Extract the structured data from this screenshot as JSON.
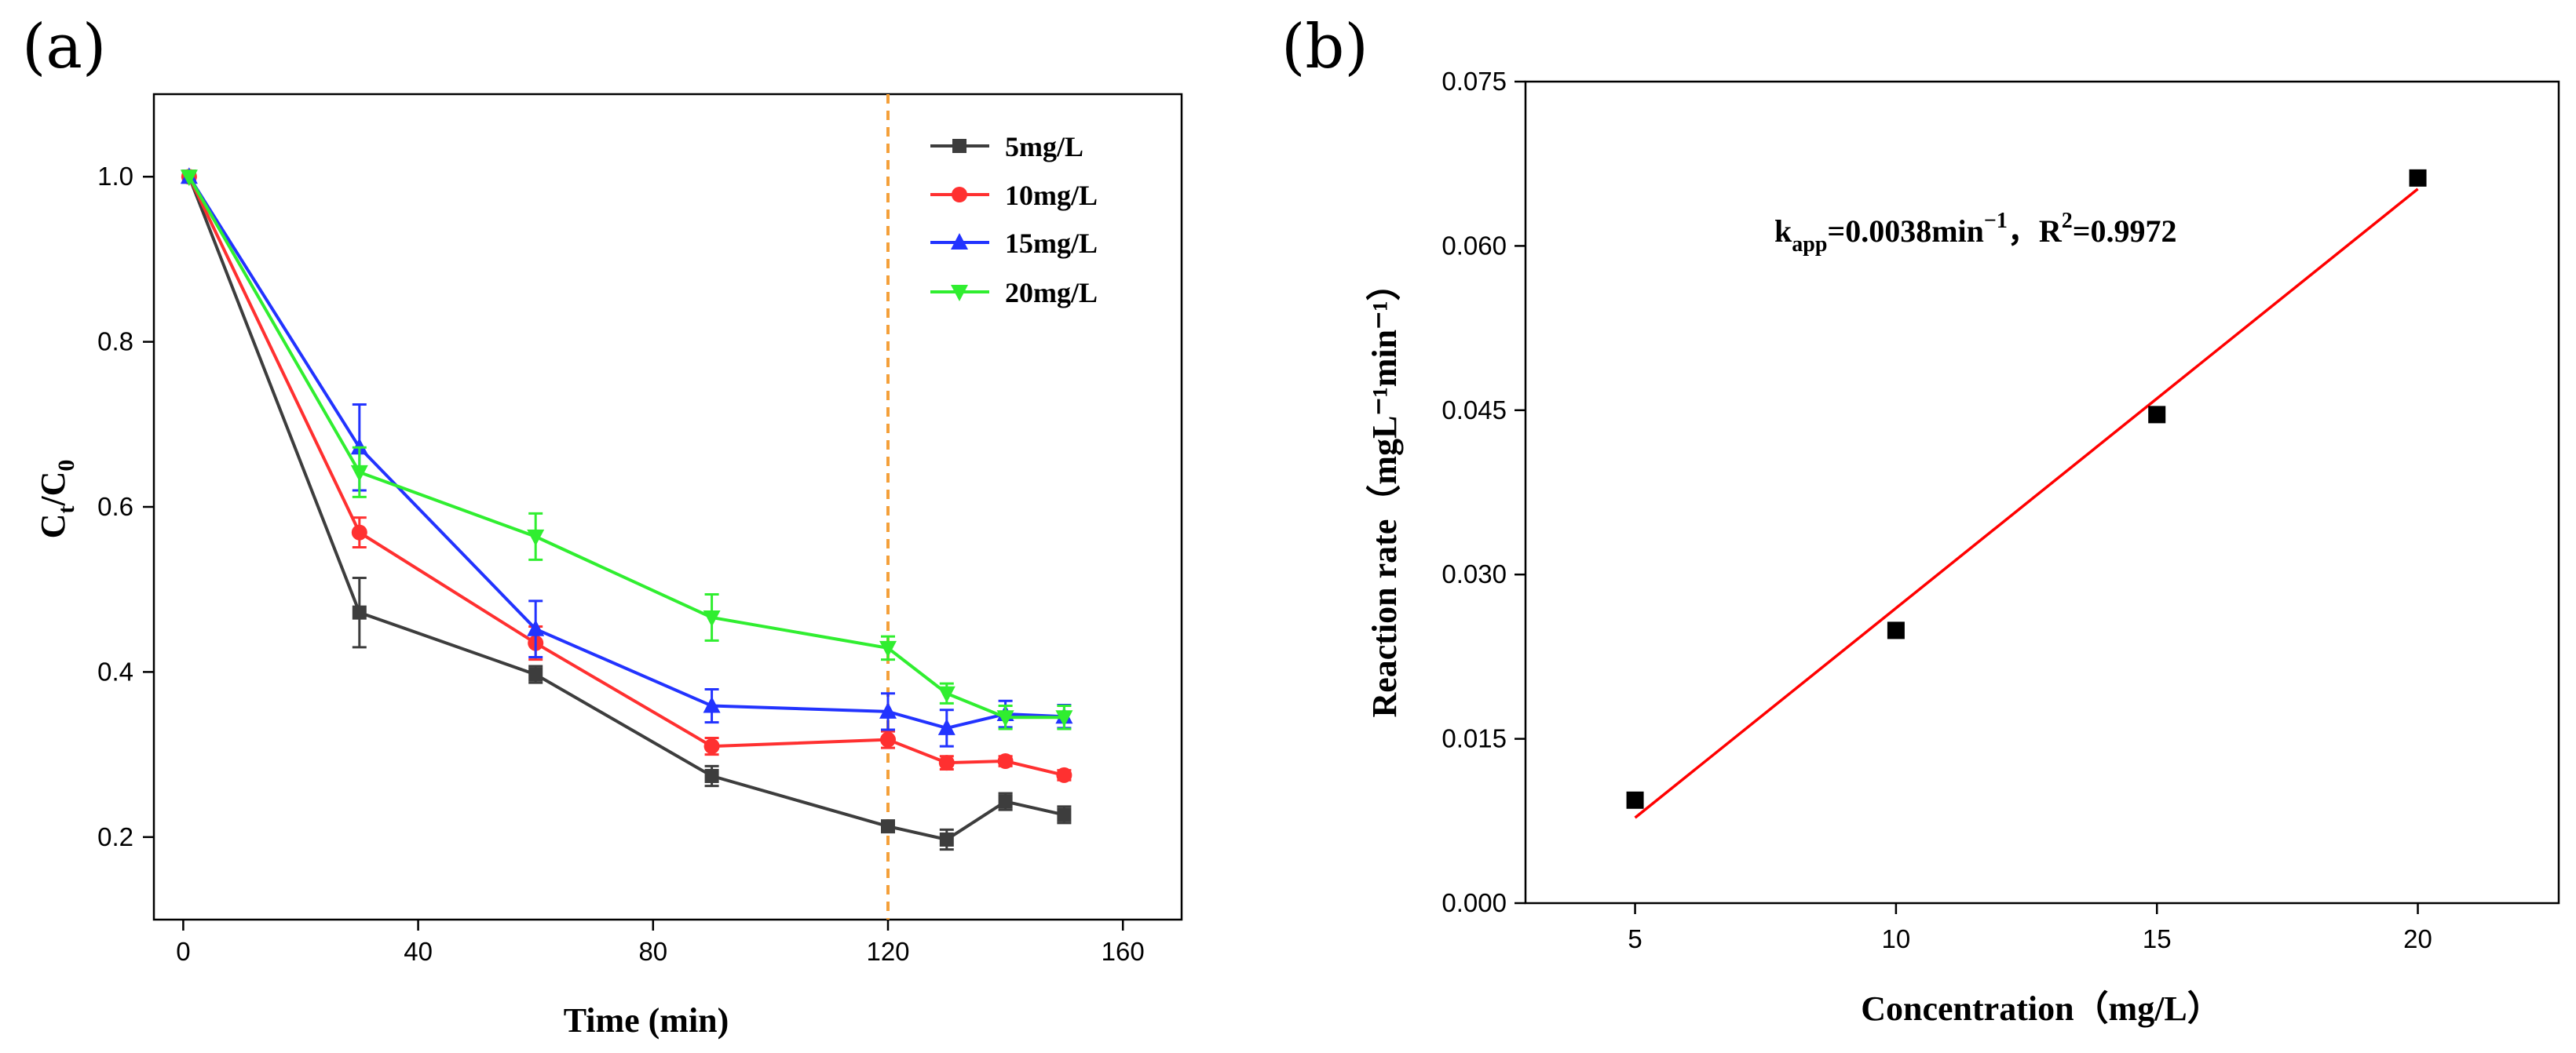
{
  "panels": {
    "a": {
      "label": "(a)"
    },
    "b": {
      "label": "(b)"
    }
  },
  "chart_data": [
    {
      "type": "line",
      "panel": "(a)",
      "xlabel": "Time (min)",
      "ylabel": {
        "base": "C",
        "sub_t": "t",
        "slash": "/C",
        "sub_0": "0"
      },
      "xlim": [
        -5,
        170
      ],
      "ylim": [
        0.1,
        1.1
      ],
      "xticks": [
        0,
        40,
        80,
        120,
        160
      ],
      "yticks": [
        0.2,
        0.4,
        0.6,
        0.8,
        1.0
      ],
      "ytick_labels": [
        "0.2",
        "0.4",
        "0.6",
        "0.8",
        "1.0"
      ],
      "grid": false,
      "legend_position": "top-right",
      "vline": {
        "x": 120,
        "style": "dashed",
        "color": "#f4a03a"
      },
      "x": [
        1,
        30,
        60,
        90,
        120,
        130,
        140,
        150
      ],
      "series": [
        {
          "name": "5mg/L",
          "color": "#3d3d3d",
          "marker": "square",
          "values": [
            1.0,
            0.472,
            0.397,
            0.274,
            0.213,
            0.197,
            0.243,
            0.227
          ],
          "errors": [
            0.0,
            0.042,
            0.01,
            0.012,
            0.006,
            0.012,
            0.01,
            0.01
          ]
        },
        {
          "name": "10mg/L",
          "color": "#ff3030",
          "marker": "circle",
          "values": [
            1.0,
            0.569,
            0.435,
            0.31,
            0.318,
            0.29,
            0.292,
            0.275
          ],
          "errors": [
            0.0,
            0.018,
            0.02,
            0.01,
            0.01,
            0.008,
            0.006,
            0.006
          ]
        },
        {
          "name": "15mg/L",
          "color": "#2233ff",
          "marker": "triangle-up",
          "values": [
            1.0,
            0.672,
            0.452,
            0.359,
            0.352,
            0.332,
            0.349,
            0.346
          ],
          "errors": [
            0.0,
            0.052,
            0.034,
            0.02,
            0.022,
            0.022,
            0.016,
            0.014
          ]
        },
        {
          "name": "20mg/L",
          "color": "#30ee30",
          "marker": "triangle-down",
          "values": [
            1.0,
            0.642,
            0.564,
            0.466,
            0.429,
            0.374,
            0.345,
            0.345
          ],
          "errors": [
            0.0,
            0.03,
            0.028,
            0.028,
            0.014,
            0.012,
            0.014,
            0.014
          ]
        }
      ]
    },
    {
      "type": "scatter",
      "panel": "(b)",
      "xlabel": "Concentration（mg/L）",
      "ylabel": "Reaction rate（mgL⁻¹min⁻¹）",
      "xlim": [
        2.9,
        22.7
      ],
      "ylim": [
        0.0,
        0.075
      ],
      "xticks": [
        5,
        10,
        15,
        20
      ],
      "yticks": [
        0.0,
        0.015,
        0.03,
        0.045,
        0.06,
        0.075
      ],
      "ytick_labels": [
        "0.000",
        "0.015",
        "0.030",
        "0.045",
        "0.060",
        "0.075"
      ],
      "grid": false,
      "x": [
        5,
        10,
        15,
        20
      ],
      "values": [
        0.0094,
        0.0249,
        0.0446,
        0.0662
      ],
      "marker_color": "#000000",
      "fit_line": {
        "color": "#ff0000",
        "x": [
          5,
          20
        ],
        "y": [
          0.0078,
          0.0652
        ]
      },
      "annotation": {
        "k": "k",
        "k_sub": "app",
        "k_value": "=0.0038min",
        "k_unit_sup": "−1",
        "separator": "，R",
        "r_sup": "2",
        "r_value": "=0.9972"
      }
    }
  ]
}
